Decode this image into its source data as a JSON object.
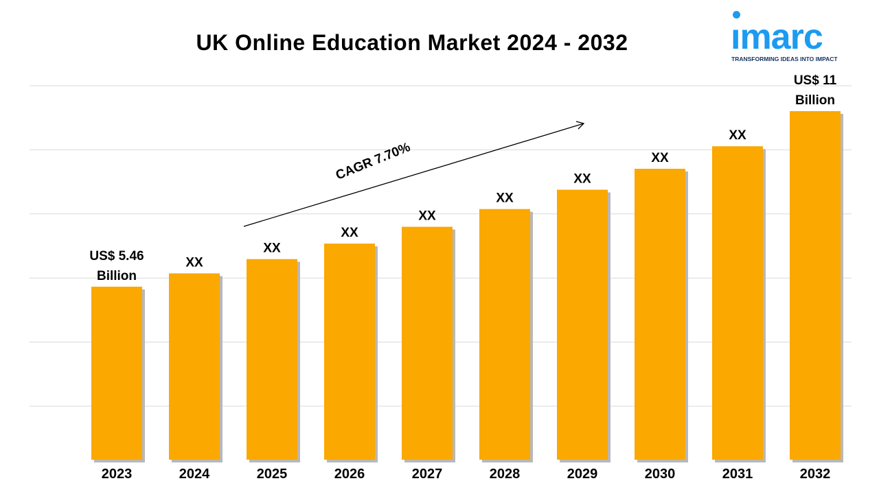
{
  "chart_data": {
    "type": "bar",
    "title": "UK Online Education Market 2024 - 2032",
    "categories": [
      "2023",
      "2024",
      "2025",
      "2026",
      "2027",
      "2028",
      "2029",
      "2030",
      "2031",
      "2032"
    ],
    "values": [
      5.46,
      5.88,
      6.33,
      6.82,
      7.35,
      7.91,
      8.52,
      9.18,
      9.89,
      11
    ],
    "data_labels": [
      [
        "US$ 5.46",
        "Billion"
      ],
      [
        "XX"
      ],
      [
        "XX"
      ],
      [
        "XX"
      ],
      [
        "XX"
      ],
      [
        "XX"
      ],
      [
        "XX"
      ],
      [
        "XX"
      ],
      [
        "XX"
      ],
      [
        "US$ 11",
        "Billion"
      ]
    ],
    "unit": "US$ Billion",
    "ylim": [
      0,
      11.8
    ],
    "y_axis_labels_shown": false,
    "grid": true,
    "bar_color": "#fba800",
    "annotation": {
      "text": "CAGR 7.70%",
      "arrow": "upward trend arrow"
    }
  },
  "logo": {
    "word": "ımarc",
    "tagline": "TRANSFORMING IDEAS INTO IMPACT",
    "color": "#1c9bf0",
    "tagline_color": "#16325c"
  }
}
